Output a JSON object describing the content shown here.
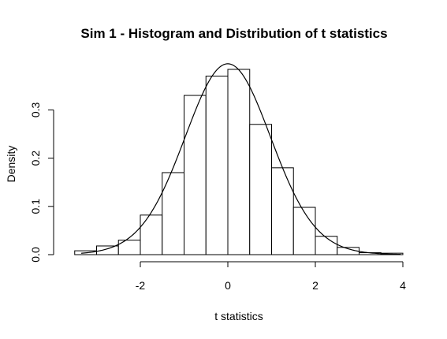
{
  "chart_data": {
    "type": "bar",
    "title": "Sim 1 - Histogram and Distribution of t statistics",
    "xlabel": "t statistics",
    "ylabel": "Density",
    "xlim": [
      -3.5,
      4
    ],
    "ylim": [
      0,
      0.4
    ],
    "x_ticks": [
      "-2",
      "0",
      "2",
      "4"
    ],
    "y_ticks": [
      "0.0",
      "0.1",
      "0.2",
      "0.3"
    ],
    "bins": [
      {
        "x0": -3.5,
        "x1": -3.0,
        "density": 0.008
      },
      {
        "x0": -3.0,
        "x1": -2.5,
        "density": 0.018
      },
      {
        "x0": -2.5,
        "x1": -2.0,
        "density": 0.03
      },
      {
        "x0": -2.0,
        "x1": -1.5,
        "density": 0.082
      },
      {
        "x0": -1.5,
        "x1": -1.0,
        "density": 0.17
      },
      {
        "x0": -1.0,
        "x1": -0.5,
        "density": 0.33
      },
      {
        "x0": -0.5,
        "x1": 0.0,
        "density": 0.37
      },
      {
        "x0": 0.0,
        "x1": 0.5,
        "density": 0.384
      },
      {
        "x0": 0.5,
        "x1": 1.0,
        "density": 0.27
      },
      {
        "x0": 1.0,
        "x1": 1.5,
        "density": 0.18
      },
      {
        "x0": 1.5,
        "x1": 2.0,
        "density": 0.098
      },
      {
        "x0": 2.0,
        "x1": 2.5,
        "density": 0.038
      },
      {
        "x0": 2.5,
        "x1": 3.0,
        "density": 0.015
      },
      {
        "x0": 3.0,
        "x1": 3.5,
        "density": 0.004
      },
      {
        "x0": 3.5,
        "x1": 4.0,
        "density": 0.003
      }
    ],
    "curve": {
      "type": "t-density",
      "df": 30
    },
    "colors": {
      "bar_fill": "#ffffff",
      "bar_stroke": "#000000",
      "curve": "#000000"
    }
  }
}
